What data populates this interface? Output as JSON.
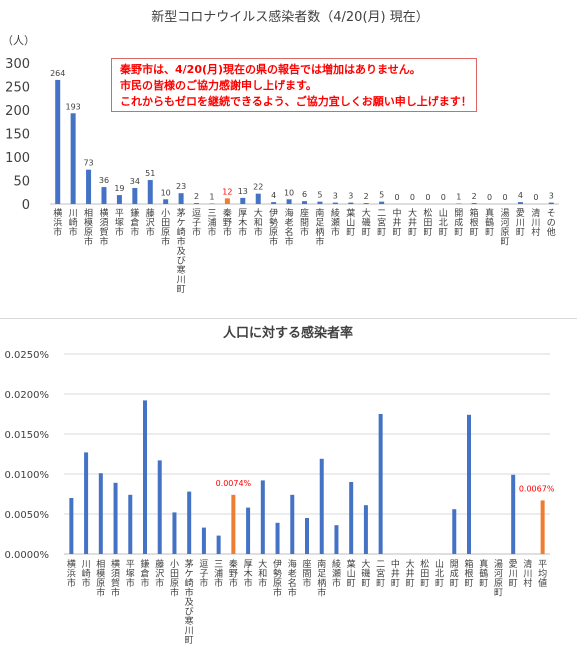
{
  "chart_data": [
    {
      "type": "bar",
      "title": "新型コロナウイルス感染者数（4/20(月) 現在）",
      "ylabel": "（人）",
      "ylim": [
        0,
        300
      ],
      "yticks": [
        "0",
        "50",
        "100",
        "150",
        "200",
        "250",
        "300"
      ],
      "categories": [
        "横浜市",
        "川崎市",
        "相模原市",
        "横須賀市",
        "平塚市",
        "鎌倉市",
        "藤沢市",
        "小田原市",
        "茅ケ崎市及び寒川町",
        "逗子市",
        "三浦市",
        "秦野市",
        "厚木市",
        "大和市",
        "伊勢原市",
        "海老名市",
        "座間市",
        "南足柄市",
        "綾瀬市",
        "葉山町",
        "大磯町",
        "二宮町",
        "中井町",
        "大井町",
        "松田町",
        "山北町",
        "開成町",
        "箱根町",
        "真鶴町",
        "湯河原町",
        "愛川町",
        "清川村",
        "その他"
      ],
      "values": [
        264,
        193,
        73,
        36,
        19,
        34,
        51,
        10,
        23,
        2,
        1,
        12,
        13,
        22,
        4,
        10,
        6,
        5,
        3,
        3,
        2,
        5,
        0,
        0,
        0,
        0,
        1,
        2,
        0,
        0,
        4,
        0,
        3
      ],
      "value_labels": [
        "264",
        "193",
        "73",
        "36",
        "19",
        "34",
        "51",
        "10",
        "23",
        "2",
        "1",
        "12",
        "13",
        "22",
        "4",
        "10",
        "6",
        "5",
        "3",
        "3",
        "2",
        "5",
        "0",
        "0",
        "0",
        "0",
        "1",
        "2",
        "0",
        "0",
        "4",
        "0",
        "3"
      ],
      "highlight": "秦野市",
      "colors": {
        "default": "#4472c4",
        "highlight": "#ed7d31",
        "highlight_label": "#ff0000"
      },
      "grid": false,
      "legend": "none",
      "annotation": {
        "lines": [
          "秦野市は、4/20(月)現在の県の報告では増加はありません。",
          "市民の皆様のご協力感謝申し上げます。",
          "これからもゼロを継続できるよう、ご協力宜しくお願い申し上げます！"
        ],
        "color": "#ff0000"
      }
    },
    {
      "type": "bar",
      "title": "人口に対する感染者率",
      "ylim": [
        0,
        0.025
      ],
      "yticks": [
        "0.0000%",
        "0.0050%",
        "0.0100%",
        "0.0150%",
        "0.0200%",
        "0.0250%"
      ],
      "categories": [
        "横浜市",
        "川崎市",
        "相模原市",
        "横須賀市",
        "平塚市",
        "鎌倉市",
        "藤沢市",
        "小田原市",
        "茅ケ崎市及び寒川町",
        "逗子市",
        "三浦市",
        "秦野市",
        "厚木市",
        "大和市",
        "伊勢原市",
        "海老名市",
        "座間市",
        "南足柄市",
        "綾瀬市",
        "葉山町",
        "大磯町",
        "二宮町",
        "中井町",
        "大井町",
        "松田町",
        "山北町",
        "開成町",
        "箱根町",
        "真鶴町",
        "湯河原町",
        "愛川町",
        "清川村",
        "平均値"
      ],
      "values": [
        0.007,
        0.0127,
        0.0101,
        0.0089,
        0.0074,
        0.0192,
        0.0117,
        0.0052,
        0.0078,
        0.0033,
        0.0023,
        0.0074,
        0.0058,
        0.0092,
        0.0039,
        0.0074,
        0.0045,
        0.0119,
        0.0036,
        0.009,
        0.0061,
        0.0175,
        0,
        0,
        0,
        0,
        0.0056,
        0.0174,
        0,
        0,
        0.0099,
        0,
        0.0067
      ],
      "data_labels": {
        "秦野市": "0.0074%",
        "平均値": "0.0067%"
      },
      "highlight": [
        "秦野市",
        "平均値"
      ],
      "colors": {
        "default": "#4472c4",
        "highlight": "#ed7d31",
        "highlight_label": "#ff0000"
      },
      "grid": true,
      "legend": "none"
    }
  ]
}
